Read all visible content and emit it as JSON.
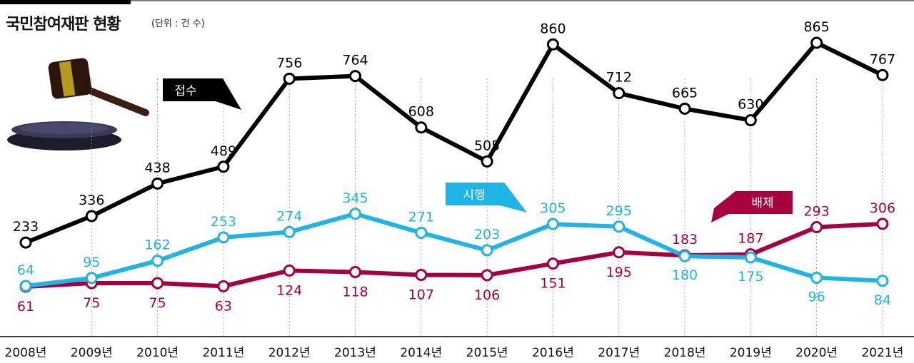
{
  "chart_data": {
    "type": "line",
    "title": "국민참여재판 현황",
    "unit": "(단위 : 건 수)",
    "categories": [
      "2008년",
      "2009년",
      "2010년",
      "2011년",
      "2012년",
      "2013년",
      "2014년",
      "2015년",
      "2016년",
      "2017년",
      "2018년",
      "2019년",
      "2020년",
      "2021년"
    ],
    "series": [
      {
        "name": "접수",
        "color": "#000000",
        "values": [
          233,
          336,
          438,
          489,
          756,
          764,
          608,
          505,
          860,
          712,
          665,
          630,
          865,
          767
        ]
      },
      {
        "name": "시행",
        "color": "#1fb4e6",
        "values": [
          64,
          95,
          162,
          253,
          274,
          345,
          271,
          203,
          305,
          295,
          180,
          175,
          96,
          84
        ]
      },
      {
        "name": "배제",
        "color": "#a8003f",
        "values": [
          61,
          75,
          75,
          63,
          124,
          118,
          107,
          106,
          151,
          195,
          183,
          187,
          293,
          306
        ]
      }
    ],
    "legend_labels": {
      "접수": "접수",
      "시행": "시행",
      "배제": "배제"
    }
  },
  "colors": {
    "accent_bar": "#000000",
    "grid": "#999999"
  }
}
